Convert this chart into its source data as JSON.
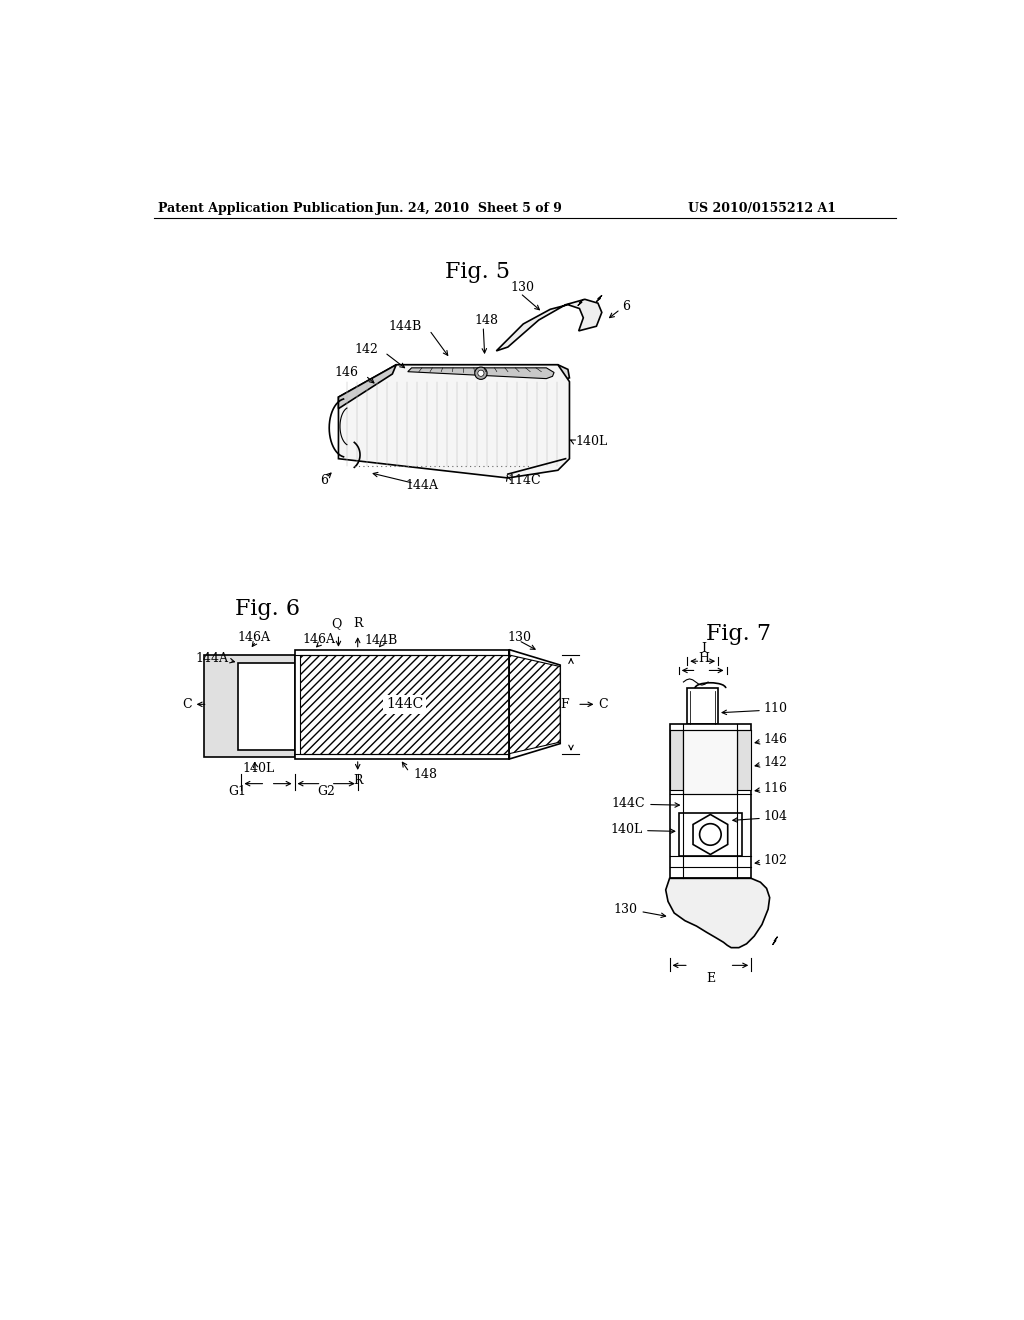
{
  "page_title_left": "Patent Application Publication",
  "page_title_center": "Jun. 24, 2010  Sheet 5 of 9",
  "page_title_right": "US 2010/0155212 A1",
  "fig5_label": "Fig. 5",
  "fig6_label": "Fig. 6",
  "fig7_label": "Fig. 7",
  "background_color": "#ffffff",
  "line_color": "#000000",
  "text_color": "#000000",
  "font_size_header": 9,
  "font_size_fig": 16,
  "font_size_label": 9
}
